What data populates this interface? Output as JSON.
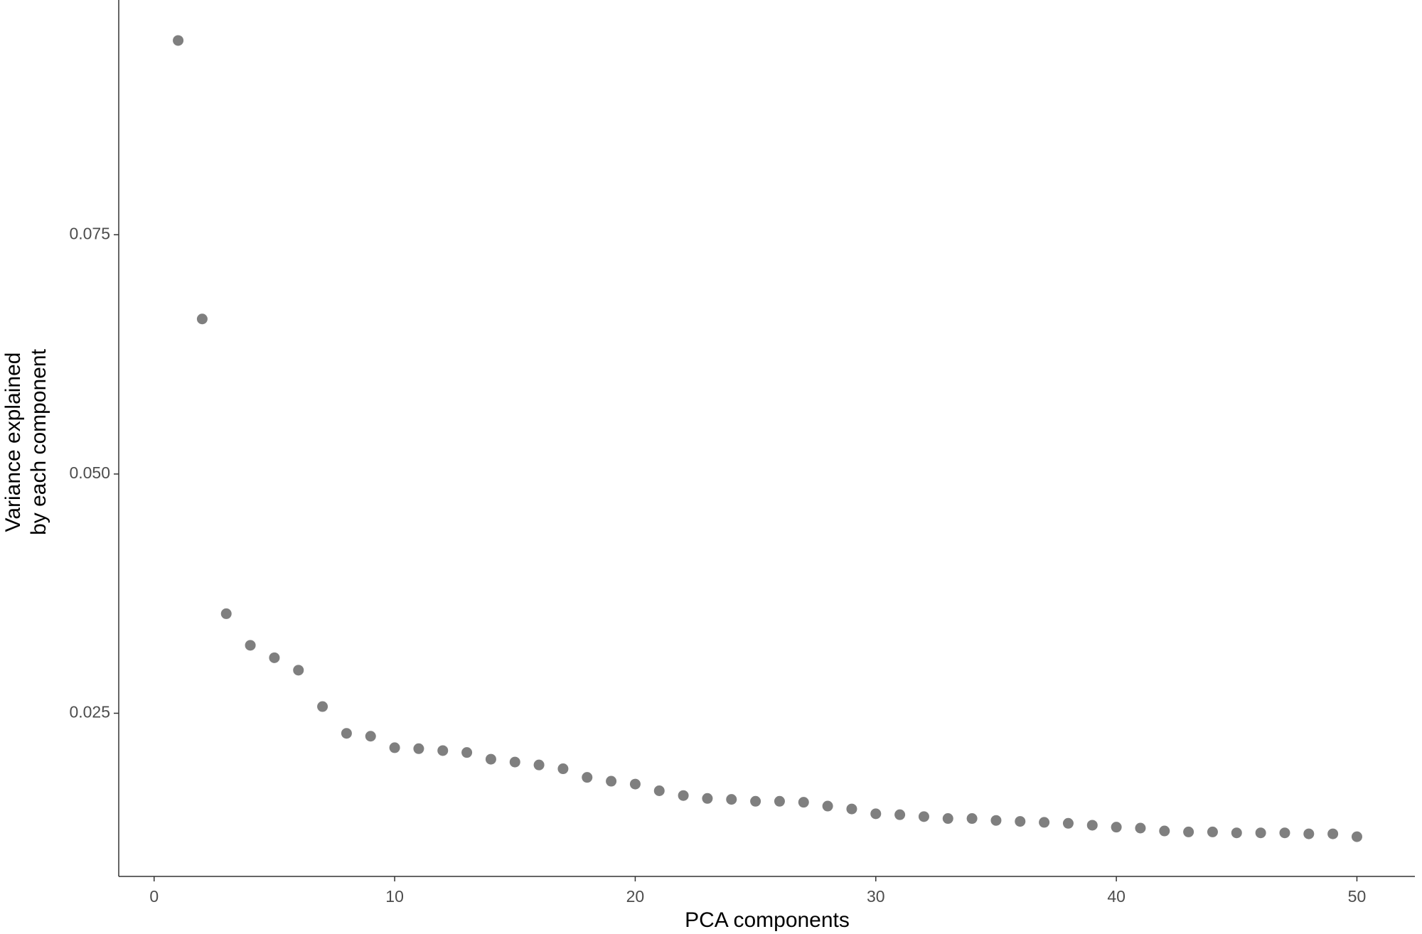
{
  "chart_data": {
    "type": "scatter",
    "x_label": "PCA components",
    "y_label": [
      "Variance explained",
      "by each component"
    ],
    "x": [
      1,
      2,
      3,
      4,
      5,
      6,
      7,
      8,
      9,
      10,
      11,
      12,
      13,
      14,
      15,
      16,
      17,
      18,
      19,
      20,
      21,
      22,
      23,
      24,
      25,
      26,
      27,
      28,
      29,
      30,
      31,
      32,
      33,
      34,
      35,
      36,
      37,
      38,
      39,
      40,
      41,
      42,
      43,
      44,
      45,
      46,
      47,
      48,
      49,
      50
    ],
    "values": [
      0.0953,
      0.0662,
      0.0354,
      0.0321,
      0.0308,
      0.0295,
      0.0257,
      0.0229,
      0.0226,
      0.0214,
      0.0213,
      0.0211,
      0.0209,
      0.0202,
      0.0199,
      0.0196,
      0.0192,
      0.0183,
      0.0179,
      0.0176,
      0.0169,
      0.0164,
      0.0161,
      0.016,
      0.0158,
      0.0158,
      0.0157,
      0.0153,
      0.015,
      0.0145,
      0.0144,
      0.0142,
      0.014,
      0.014,
      0.0138,
      0.0137,
      0.0136,
      0.0135,
      0.0133,
      0.0131,
      0.013,
      0.0127,
      0.0126,
      0.0126,
      0.0125,
      0.0125,
      0.0125,
      0.0124,
      0.0124,
      0.0121
    ],
    "color": "#7f7f7f",
    "xlim": [
      -1.47,
      52.41
    ],
    "xticks": [
      0,
      10,
      20,
      30,
      40,
      50
    ],
    "ylim": [
      0.00795,
      0.09953
    ],
    "yticks": [
      0.025,
      {
        "value": 0.05,
        "label": "0.050"
      },
      0.075
    ],
    "grid": false
  }
}
